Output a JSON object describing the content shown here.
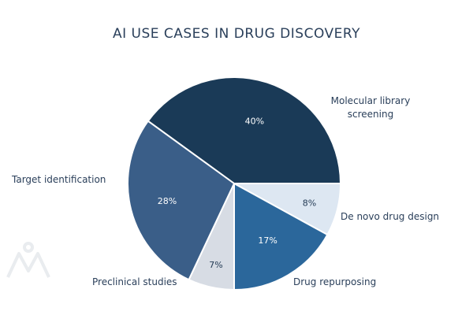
{
  "chart_data": {
    "type": "pie",
    "title": "AI USE CASES IN DRUG DISCOVERY",
    "slices": [
      {
        "label": "Molecular library screening",
        "value": 40,
        "display": "40%",
        "color": "#1a3a57"
      },
      {
        "label": "De novo drug design",
        "value": 8,
        "display": "8%",
        "color": "#dde7f2"
      },
      {
        "label": "Drug repurposing",
        "value": 17,
        "display": "17%",
        "color": "#2b679b"
      },
      {
        "label": "Preclinical studies",
        "value": 7,
        "display": "7%",
        "color": "#d7dce4"
      },
      {
        "label": "Target identification",
        "value": 28,
        "display": "28%",
        "color": "#3a5e88"
      }
    ],
    "legend": "none",
    "labels": "outside"
  }
}
